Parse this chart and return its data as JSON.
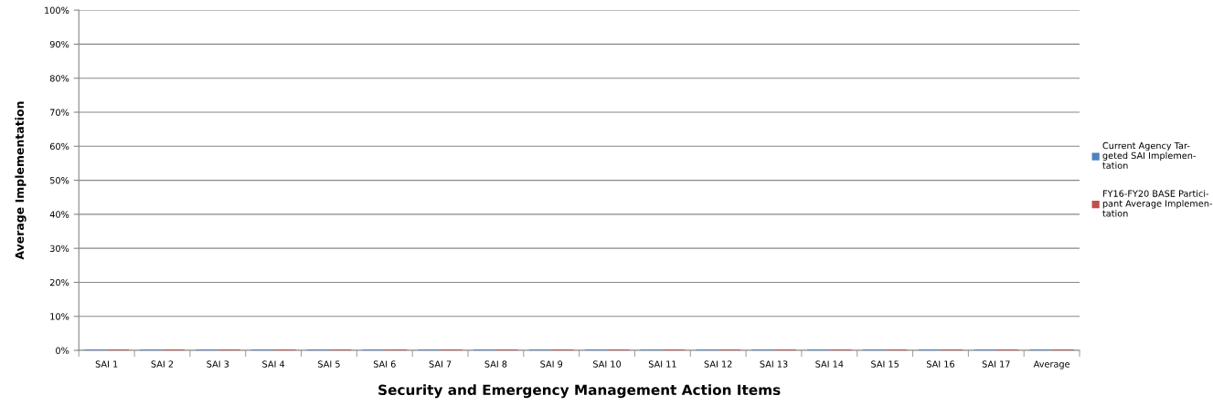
{
  "chart_data": {
    "type": "bar",
    "xlabel": "Security and Emergency Management Action Items",
    "ylabel": "Average Implementation",
    "categories": [
      "SAI 1",
      "SAI 2",
      "SAI 3",
      "SAI 4",
      "SAI 5",
      "SAI 6",
      "SAI 7",
      "SAI 8",
      "SAI 9",
      "SAI 10",
      "SAI 11",
      "SAI 12",
      "SAI 13",
      "SAI 14",
      "SAI 15",
      "SAI 16",
      "SAI 17",
      "Average"
    ],
    "series": [
      {
        "name": "Current Agency Tar-\ngeted SAI Implemen-\ntation",
        "color": "#4f81bd",
        "values": [
          0,
          0,
          0,
          0,
          0,
          0,
          0,
          0,
          0,
          0,
          0,
          0,
          0,
          0,
          0,
          0,
          0,
          0
        ]
      },
      {
        "name": "FY16-FY20 BASE Partici-\npant Average Implemen-\ntation",
        "color": "#c0504d",
        "values": [
          0,
          0,
          0,
          0,
          0,
          0,
          0,
          0,
          0,
          0,
          0,
          0,
          0,
          0,
          0,
          0,
          0,
          0
        ]
      }
    ],
    "ylim": [
      0,
      100
    ],
    "yticks": [
      {
        "value": 0,
        "label": "0%"
      },
      {
        "value": 10,
        "label": "10%"
      },
      {
        "value": 20,
        "label": "20%"
      },
      {
        "value": 30,
        "label": "30%"
      },
      {
        "value": 40,
        "label": "40%"
      },
      {
        "value": 50,
        "label": "50%"
      },
      {
        "value": 60,
        "label": "60%"
      },
      {
        "value": 70,
        "label": "70%"
      },
      {
        "value": 80,
        "label": "80%"
      },
      {
        "value": 90,
        "label": "90%"
      },
      {
        "value": 100,
        "label": "100%"
      }
    ],
    "grid": "y",
    "legend": "right"
  }
}
